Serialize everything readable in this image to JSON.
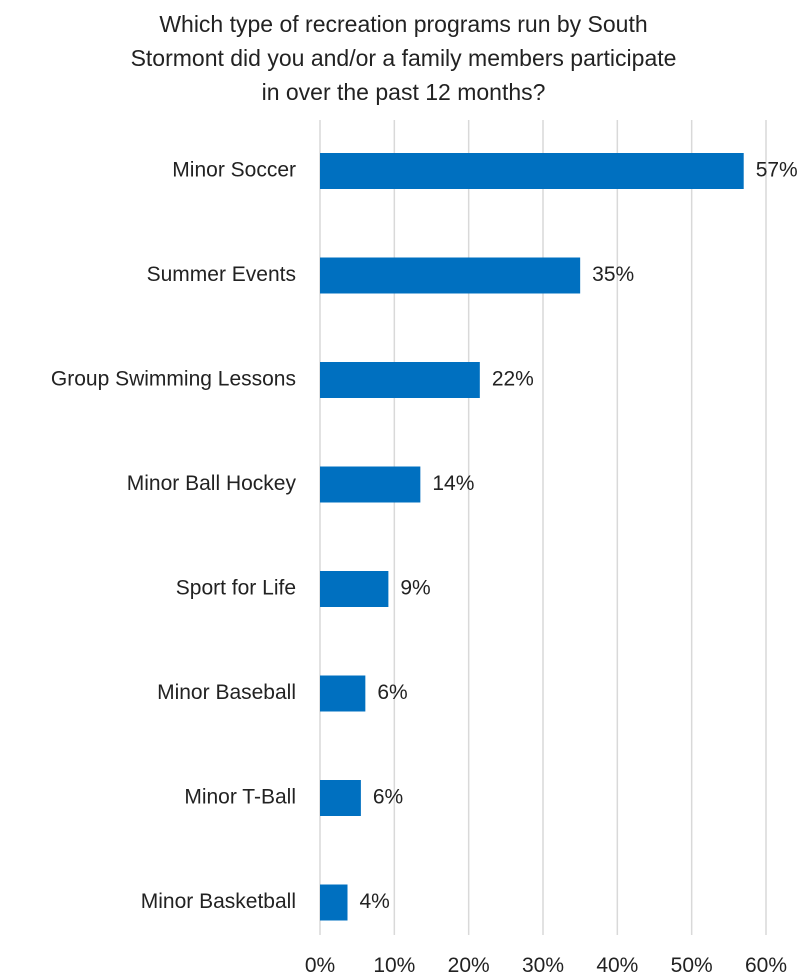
{
  "chart_data": {
    "type": "bar",
    "orientation": "horizontal",
    "title_lines": [
      "Which type of recreation programs run by South",
      "Stormont did you and/or a family members participate",
      "in over the past 12 months?"
    ],
    "categories": [
      "Minor Soccer",
      "Summer Events",
      "Group Swimming Lessons",
      "Minor Ball Hockey",
      "Sport for Life",
      "Minor Baseball",
      "Minor T-Ball",
      "Minor Basketball"
    ],
    "values": [
      57,
      35,
      22,
      14,
      9,
      6,
      6,
      4
    ],
    "bar_values": [
      57,
      35,
      21.5,
      13.5,
      9.2,
      6.1,
      5.5,
      3.7
    ],
    "value_labels": [
      "57%",
      "35%",
      "22%",
      "14%",
      "9%",
      "6%",
      "6%",
      "4%"
    ],
    "x_ticks": [
      "0%",
      "10%",
      "20%",
      "30%",
      "40%",
      "50%",
      "60%"
    ],
    "xlim": [
      0,
      60
    ],
    "grid": true,
    "legend": "none",
    "colors": {
      "bar": "#0070C0",
      "grid": "#d9d9d9",
      "text": "#222222"
    }
  }
}
